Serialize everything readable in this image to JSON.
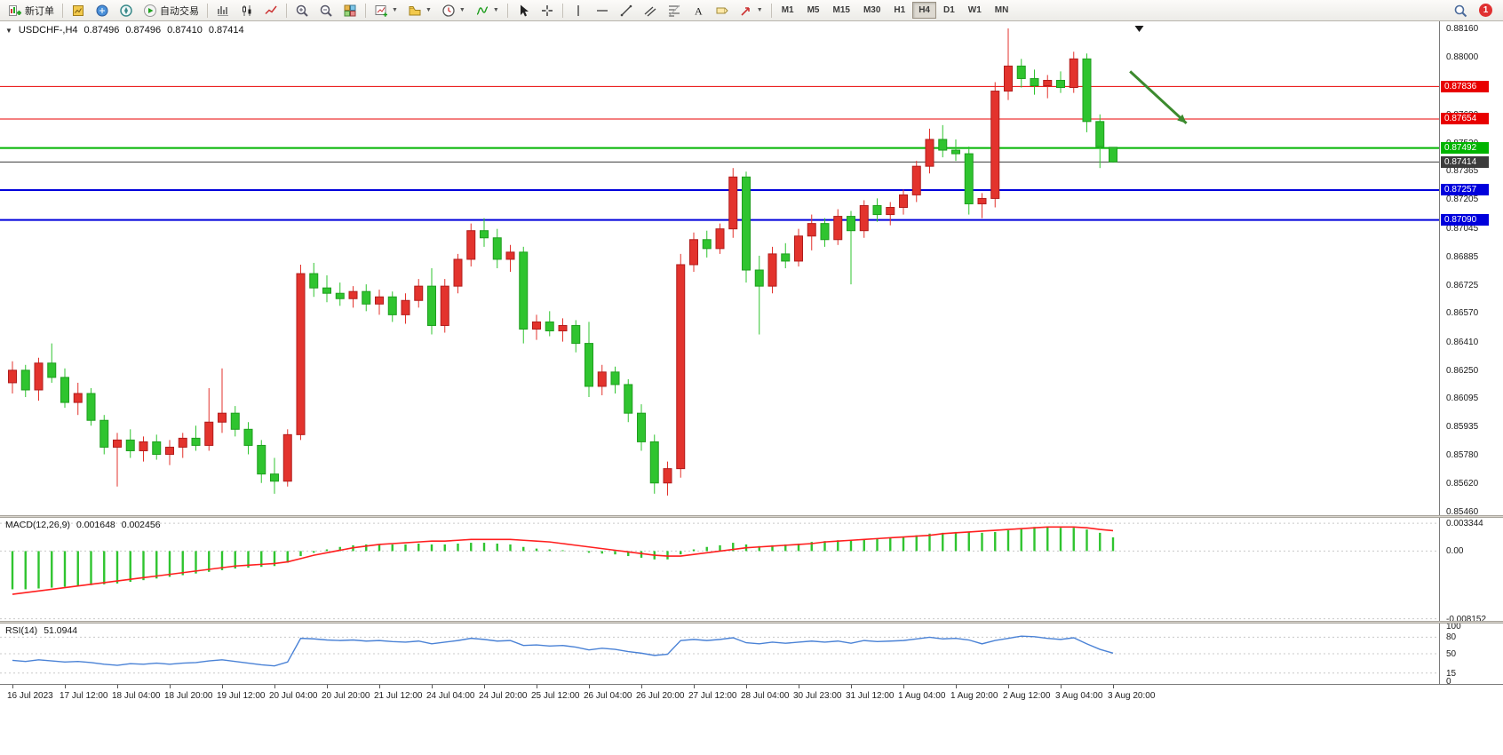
{
  "toolbar": {
    "items": [
      {
        "t": "btn",
        "name": "new-order-button",
        "icon": "new-order-icon",
        "label": "新订单"
      },
      {
        "t": "sep"
      },
      {
        "t": "ico",
        "name": "market-watch-button",
        "icon": "market-watch-icon"
      },
      {
        "t": "ico",
        "name": "data-window-button",
        "icon": "data-window-icon"
      },
      {
        "t": "ico",
        "name": "navigator-button",
        "icon": "navigator-icon"
      },
      {
        "t": "btn",
        "name": "autotrade-button",
        "icon": "autotrade-icon",
        "label": "自动交易"
      },
      {
        "t": "sep"
      },
      {
        "t": "ico",
        "name": "bar-chart-button",
        "icon": "bar-chart-icon"
      },
      {
        "t": "ico",
        "name": "candle-chart-button",
        "icon": "candle-chart-icon"
      },
      {
        "t": "ico",
        "name": "line-chart-button",
        "icon": "line-chart-icon"
      },
      {
        "t": "sep"
      },
      {
        "t": "ico",
        "name": "zoom-in-button",
        "icon": "zoom-in-icon"
      },
      {
        "t": "ico",
        "name": "zoom-out-button",
        "icon": "zoom-out-icon"
      },
      {
        "t": "ico",
        "name": "tile-windows-button",
        "icon": "tile-windows-icon"
      },
      {
        "t": "sep"
      },
      {
        "t": "combo",
        "name": "new-chart-button",
        "icon": "new-chart-icon"
      },
      {
        "t": "combo",
        "name": "profiles-button",
        "icon": "profiles-icon"
      },
      {
        "t": "combo",
        "name": "period-button",
        "icon": "clock-icon"
      },
      {
        "t": "combo",
        "name": "indicators-button",
        "icon": "indicators-icon"
      },
      {
        "t": "sep"
      },
      {
        "t": "ico",
        "name": "cursor-button",
        "icon": "cursor-icon"
      },
      {
        "t": "ico",
        "name": "crosshair-button",
        "icon": "crosshair-icon"
      },
      {
        "t": "sep"
      },
      {
        "t": "ico",
        "name": "vertical-line-button",
        "icon": "vline-icon"
      },
      {
        "t": "ico",
        "name": "horizontal-line-button",
        "icon": "hline-icon"
      },
      {
        "t": "ico",
        "name": "trendline-button",
        "icon": "trendline-icon"
      },
      {
        "t": "ico",
        "name": "channel-button",
        "icon": "channel-icon"
      },
      {
        "t": "ico",
        "name": "fibonacci-button",
        "icon": "fibo-icon"
      },
      {
        "t": "ico",
        "name": "text-button",
        "icon": "text-icon"
      },
      {
        "t": "ico",
        "name": "label-button",
        "icon": "label-icon"
      },
      {
        "t": "combo",
        "name": "arrows-button",
        "icon": "arrow-shape-icon"
      },
      {
        "t": "sep"
      }
    ],
    "timeframes": [
      "M1",
      "M5",
      "M15",
      "M30",
      "H1",
      "H4",
      "D1",
      "W1",
      "MN"
    ],
    "active_timeframe": "H4",
    "alert_count": "1"
  },
  "header": {
    "collapse_icon": "▼",
    "symbol": "USDCHF-,H4",
    "open": "0.87496",
    "high": "0.87496",
    "low": "0.87410",
    "close": "0.87414"
  },
  "chart": {
    "colors": {
      "up": "#e3332d",
      "up_border": "#b01c1c",
      "down": "#2fc42f",
      "down_border": "#1e9e1e",
      "macd_hist": "#2fc42f",
      "macd_signal": "#ff1f1f",
      "rsi_line": "#4a82d6"
    },
    "price_axis": {
      "ticks": [
        "0.88160",
        "0.88000",
        "0.87840",
        "0.87680",
        "0.87520",
        "0.87365",
        "0.87205",
        "0.87045",
        "0.86885",
        "0.86725",
        "0.86570",
        "0.86410",
        "0.86250",
        "0.86095",
        "0.85935",
        "0.85780",
        "0.85620",
        "0.85460"
      ]
    },
    "levels": [
      {
        "name": "resistance-line-upper",
        "value": 0.87836,
        "label": "0.87836",
        "color": "#e80000",
        "width": 1
      },
      {
        "name": "resistance-line-lower",
        "value": 0.87654,
        "label": "0.87654",
        "color": "#e80000",
        "width": 1
      },
      {
        "name": "support-line-green",
        "value": 0.87492,
        "label": "0.87492",
        "color": "#00b400",
        "width": 2
      },
      {
        "name": "current-price-line",
        "value": 0.87414,
        "label": "0.87414",
        "color": "#3c3c3c",
        "width": 1
      },
      {
        "name": "support-line-blue-upper",
        "value": 0.87257,
        "label": "0.87257",
        "color": "#0000dc",
        "width": 2
      },
      {
        "name": "support-line-blue-lower",
        "value": 0.8709,
        "label": "0.87090",
        "color": "#0000dc",
        "width": 2
      }
    ],
    "arrow_object": {
      "from_index": 85.3,
      "from_price": 0.8792,
      "to_index": 89.6,
      "to_price": 0.8763,
      "color": "#3c8a2e"
    },
    "triangle_marker": {
      "index": 86.0,
      "price": 0.88175,
      "color": "#1a1a1a"
    },
    "time_axis": [
      "16 Jul 2023",
      "17 Jul 12:00",
      "18 Jul 04:00",
      "18 Jul 20:00",
      "19 Jul 12:00",
      "20 Jul 04:00",
      "20 Jul 20:00",
      "21 Jul 12:00",
      "24 Jul 04:00",
      "24 Jul 20:00",
      "25 Jul 12:00",
      "26 Jul 04:00",
      "26 Jul 20:00",
      "27 Jul 12:00",
      "28 Jul 04:00",
      "30 Jul 23:00",
      "31 Jul 12:00",
      "1 Aug 04:00",
      "1 Aug 20:00",
      "2 Aug 12:00",
      "3 Aug 04:00",
      "3 Aug 20:00"
    ]
  },
  "indicators": {
    "macd": {
      "name": "MACD(12,26,9)",
      "main_value": "0.001648",
      "signal_value": "0.002456"
    },
    "rsi": {
      "name": "RSI(14)",
      "value": "51.0944"
    }
  },
  "chart_data": {
    "type": "candlestick",
    "symbol": "USDCHF",
    "period": "H4",
    "ylim": [
      0.8544,
      0.882
    ],
    "candles": [
      [
        0.8618,
        0.863,
        0.8612,
        0.8625
      ],
      [
        0.8625,
        0.8628,
        0.861,
        0.8614
      ],
      [
        0.8614,
        0.8632,
        0.8608,
        0.8629
      ],
      [
        0.8629,
        0.864,
        0.8618,
        0.8621
      ],
      [
        0.8621,
        0.8626,
        0.8604,
        0.8607
      ],
      [
        0.8607,
        0.8618,
        0.86,
        0.8612
      ],
      [
        0.8612,
        0.8615,
        0.8594,
        0.8597
      ],
      [
        0.8597,
        0.86,
        0.8578,
        0.8582
      ],
      [
        0.8582,
        0.859,
        0.856,
        0.8586
      ],
      [
        0.8586,
        0.8592,
        0.8576,
        0.858
      ],
      [
        0.858,
        0.8588,
        0.8574,
        0.8585
      ],
      [
        0.8585,
        0.8589,
        0.8575,
        0.8578
      ],
      [
        0.8578,
        0.8586,
        0.8572,
        0.8582
      ],
      [
        0.8582,
        0.859,
        0.8576,
        0.8587
      ],
      [
        0.8587,
        0.8594,
        0.858,
        0.8583
      ],
      [
        0.8583,
        0.8615,
        0.858,
        0.8596
      ],
      [
        0.8596,
        0.8626,
        0.859,
        0.8601
      ],
      [
        0.8601,
        0.8605,
        0.8588,
        0.8592
      ],
      [
        0.8592,
        0.8596,
        0.8578,
        0.8583
      ],
      [
        0.8583,
        0.8586,
        0.8562,
        0.8567
      ],
      [
        0.8567,
        0.8576,
        0.8556,
        0.8563
      ],
      [
        0.8563,
        0.8592,
        0.856,
        0.8589
      ],
      [
        0.8589,
        0.8684,
        0.8586,
        0.8679
      ],
      [
        0.8679,
        0.8685,
        0.8666,
        0.8671
      ],
      [
        0.8671,
        0.8678,
        0.8663,
        0.8668
      ],
      [
        0.8668,
        0.8674,
        0.8661,
        0.8665
      ],
      [
        0.8665,
        0.8672,
        0.866,
        0.8669
      ],
      [
        0.8669,
        0.8673,
        0.8658,
        0.8662
      ],
      [
        0.8662,
        0.867,
        0.8656,
        0.8666
      ],
      [
        0.8666,
        0.8669,
        0.8652,
        0.8656
      ],
      [
        0.8656,
        0.8668,
        0.8651,
        0.8664
      ],
      [
        0.8664,
        0.8676,
        0.866,
        0.8672
      ],
      [
        0.8672,
        0.8682,
        0.8645,
        0.865
      ],
      [
        0.865,
        0.8676,
        0.8646,
        0.8672
      ],
      [
        0.8672,
        0.869,
        0.8668,
        0.8687
      ],
      [
        0.8687,
        0.8707,
        0.8683,
        0.8703
      ],
      [
        0.8703,
        0.871,
        0.8694,
        0.8699
      ],
      [
        0.8699,
        0.8704,
        0.8682,
        0.8687
      ],
      [
        0.8687,
        0.8695,
        0.868,
        0.8691
      ],
      [
        0.8691,
        0.8694,
        0.864,
        0.8648
      ],
      [
        0.8648,
        0.8656,
        0.8642,
        0.8652
      ],
      [
        0.8652,
        0.8658,
        0.8644,
        0.8647
      ],
      [
        0.8647,
        0.8654,
        0.8641,
        0.865
      ],
      [
        0.865,
        0.8653,
        0.8635,
        0.864
      ],
      [
        0.864,
        0.8652,
        0.861,
        0.8616
      ],
      [
        0.8616,
        0.8628,
        0.8611,
        0.8624
      ],
      [
        0.8624,
        0.8627,
        0.8612,
        0.8617
      ],
      [
        0.8617,
        0.862,
        0.8596,
        0.8601
      ],
      [
        0.8601,
        0.8606,
        0.858,
        0.8585
      ],
      [
        0.8585,
        0.8589,
        0.8556,
        0.8562
      ],
      [
        0.8562,
        0.8574,
        0.8555,
        0.857
      ],
      [
        0.857,
        0.869,
        0.8565,
        0.8684
      ],
      [
        0.8684,
        0.8702,
        0.868,
        0.8698
      ],
      [
        0.8698,
        0.8703,
        0.8688,
        0.8693
      ],
      [
        0.8693,
        0.8707,
        0.869,
        0.8704
      ],
      [
        0.8704,
        0.8738,
        0.8699,
        0.8733
      ],
      [
        0.8733,
        0.8736,
        0.8674,
        0.8681
      ],
      [
        0.8681,
        0.8689,
        0.8645,
        0.8672
      ],
      [
        0.8672,
        0.8694,
        0.8668,
        0.869
      ],
      [
        0.869,
        0.8696,
        0.8682,
        0.8686
      ],
      [
        0.8686,
        0.8704,
        0.8683,
        0.87
      ],
      [
        0.87,
        0.8712,
        0.8692,
        0.8707
      ],
      [
        0.8707,
        0.871,
        0.8694,
        0.8698
      ],
      [
        0.8698,
        0.8715,
        0.8695,
        0.8711
      ],
      [
        0.8711,
        0.8714,
        0.8673,
        0.8703
      ],
      [
        0.8703,
        0.872,
        0.8699,
        0.8717
      ],
      [
        0.8717,
        0.8721,
        0.8708,
        0.8712
      ],
      [
        0.8712,
        0.8719,
        0.8706,
        0.8716
      ],
      [
        0.8716,
        0.8726,
        0.8712,
        0.8723
      ],
      [
        0.8723,
        0.8742,
        0.8719,
        0.8739
      ],
      [
        0.8739,
        0.876,
        0.8735,
        0.8754
      ],
      [
        0.8754,
        0.8762,
        0.8744,
        0.8748
      ],
      [
        0.8748,
        0.8754,
        0.8742,
        0.8746
      ],
      [
        0.8746,
        0.875,
        0.8712,
        0.8718
      ],
      [
        0.8718,
        0.8724,
        0.871,
        0.8721
      ],
      [
        0.8721,
        0.8786,
        0.8716,
        0.8781
      ],
      [
        0.8781,
        0.8816,
        0.8776,
        0.8795
      ],
      [
        0.8795,
        0.8799,
        0.8783,
        0.8788
      ],
      [
        0.8788,
        0.8793,
        0.8779,
        0.8784
      ],
      [
        0.8784,
        0.879,
        0.8777,
        0.8787
      ],
      [
        0.8787,
        0.8792,
        0.878,
        0.8783
      ],
      [
        0.8783,
        0.8803,
        0.878,
        0.8799
      ],
      [
        0.8799,
        0.8802,
        0.8758,
        0.8764
      ],
      [
        0.8764,
        0.8768,
        0.8738,
        0.875
      ],
      [
        0.87496,
        0.87496,
        0.8741,
        0.87414
      ]
    ],
    "macd": {
      "ylim": [
        -0.0084,
        0.004
      ],
      "grid_levels": [
        0.003344,
        0,
        -0.008152
      ],
      "axis_ticks": [
        "0.003344",
        "0.00",
        "-0.008152"
      ],
      "hist": [
        -0.0046,
        -0.0046,
        -0.0045,
        -0.0044,
        -0.0043,
        -0.0042,
        -0.0041,
        -0.004,
        -0.0039,
        -0.0037,
        -0.0035,
        -0.0033,
        -0.0031,
        -0.0029,
        -0.0027,
        -0.0025,
        -0.0023,
        -0.0021,
        -0.002,
        -0.0019,
        -0.0018,
        -0.0014,
        -0.0006,
        -0.0002,
        0.0002,
        0.0005,
        0.0007,
        0.0008,
        0.0008,
        0.0008,
        0.0008,
        0.0009,
        0.0008,
        0.0008,
        0.0009,
        0.001,
        0.001,
        0.0009,
        0.0008,
        0.0005,
        0.0003,
        0.0002,
        0.0001,
        0.0,
        -0.0002,
        -0.0003,
        -0.0004,
        -0.0006,
        -0.0008,
        -0.001,
        -0.001,
        -0.0004,
        0.0002,
        0.0005,
        0.0007,
        0.001,
        0.0008,
        0.0006,
        0.0007,
        0.0008,
        0.0009,
        0.0011,
        0.0012,
        0.0013,
        0.0013,
        0.0014,
        0.0015,
        0.0016,
        0.0017,
        0.0019,
        0.0021,
        0.0022,
        0.0023,
        0.0023,
        0.0022,
        0.0023,
        0.0025,
        0.0027,
        0.0029,
        0.0029,
        0.0028,
        0.0028,
        0.0026,
        0.0022,
        0.001648
      ],
      "signal": [
        -0.0052,
        -0.005,
        -0.0048,
        -0.0046,
        -0.0044,
        -0.0042,
        -0.004,
        -0.0038,
        -0.0036,
        -0.0034,
        -0.0032,
        -0.003,
        -0.0028,
        -0.0026,
        -0.0024,
        -0.0022,
        -0.002,
        -0.0018,
        -0.0017,
        -0.0016,
        -0.0015,
        -0.0013,
        -0.0009,
        -0.0005,
        -0.0002,
        0.0001,
        0.0004,
        0.0006,
        0.0008,
        0.0009,
        0.001,
        0.0011,
        0.0012,
        0.0012,
        0.0013,
        0.0014,
        0.0014,
        0.0014,
        0.0014,
        0.0013,
        0.0012,
        0.0011,
        0.0009,
        0.0007,
        0.0005,
        0.0003,
        0.0001,
        -0.0001,
        -0.0003,
        -0.0005,
        -0.0006,
        -0.0006,
        -0.0004,
        -0.0002,
        0.0,
        0.0002,
        0.0004,
        0.0005,
        0.0006,
        0.0007,
        0.0008,
        0.0009,
        0.0011,
        0.0012,
        0.0013,
        0.0014,
        0.0015,
        0.0016,
        0.0017,
        0.0018,
        0.0019,
        0.0021,
        0.0022,
        0.0023,
        0.0024,
        0.0025,
        0.0026,
        0.0027,
        0.0028,
        0.0029,
        0.0029,
        0.0029,
        0.0028,
        0.0026,
        0.002456
      ]
    },
    "rsi": {
      "range": [
        0,
        100
      ],
      "grid_levels": [
        80,
        50,
        15
      ],
      "axis_ticks": [
        "100",
        "80",
        "50",
        "15",
        "0"
      ],
      "values": [
        38,
        36,
        39,
        37,
        35,
        36,
        34,
        31,
        29,
        32,
        31,
        33,
        31,
        33,
        34,
        37,
        39,
        36,
        33,
        30,
        28,
        35,
        78,
        77,
        75,
        74,
        75,
        73,
        74,
        72,
        71,
        73,
        68,
        71,
        74,
        78,
        76,
        73,
        74,
        65,
        66,
        64,
        65,
        62,
        57,
        60,
        58,
        54,
        51,
        47,
        49,
        74,
        76,
        74,
        76,
        79,
        70,
        68,
        71,
        69,
        71,
        73,
        71,
        73,
        69,
        74,
        72,
        73,
        74,
        77,
        80,
        77,
        78,
        75,
        68,
        74,
        78,
        82,
        81,
        78,
        76,
        79,
        68,
        58,
        51.09
      ]
    }
  }
}
